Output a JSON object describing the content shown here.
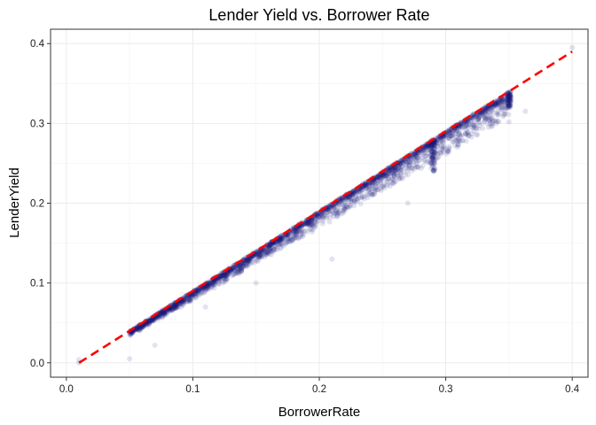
{
  "chart_data": {
    "type": "scatter",
    "title": "Lender Yield vs. Borrower Rate",
    "xlabel": "BorrowerRate",
    "ylabel": "LenderYield",
    "xlim": [
      -0.0125,
      0.4125
    ],
    "ylim": [
      -0.018,
      0.418
    ],
    "x_ticks": [
      0.0,
      0.1,
      0.2,
      0.3,
      0.4
    ],
    "x_tick_labels": [
      "0.0",
      "0.1",
      "0.2",
      "0.3",
      "0.4"
    ],
    "y_ticks": [
      0.0,
      0.1,
      0.2,
      0.3,
      0.4
    ],
    "y_tick_labels": [
      "0.0",
      "0.1",
      "0.2",
      "0.3",
      "0.4"
    ],
    "grid": true,
    "point_color": "#1a1a7a",
    "point_alpha": 0.12,
    "reference_line": {
      "style": "dashed",
      "color": "#ff0000",
      "x": [
        0.01,
        0.4
      ],
      "y": [
        0.0,
        0.39
      ]
    },
    "series": [
      {
        "x_range": [
          0.01,
          0.36
        ],
        "density_profile": [
          {
            "x": 0.05,
            "y_main": 0.04
          },
          {
            "x": 0.1,
            "y_main": 0.09
          },
          {
            "x": 0.15,
            "y_main": 0.14
          },
          {
            "x": 0.2,
            "y_main": 0.19
          },
          {
            "x": 0.25,
            "y_main": 0.24
          },
          {
            "x": 0.29,
            "y_main": 0.28
          },
          {
            "x": 0.35,
            "y_main": 0.34
          }
        ],
        "outliers": [
          {
            "x": 0.01,
            "y": 0.0
          },
          {
            "x": 0.01,
            "y": 0.004
          },
          {
            "x": 0.05,
            "y": 0.005
          },
          {
            "x": 0.07,
            "y": 0.022
          },
          {
            "x": 0.11,
            "y": 0.07
          },
          {
            "x": 0.15,
            "y": 0.1
          },
          {
            "x": 0.21,
            "y": 0.13
          },
          {
            "x": 0.27,
            "y": 0.2
          },
          {
            "x": 0.34,
            "y": 0.3
          },
          {
            "x": 0.35,
            "y": 0.302
          },
          {
            "x": 0.363,
            "y": 0.315
          },
          {
            "x": 0.4,
            "y": 0.395
          }
        ]
      }
    ]
  }
}
